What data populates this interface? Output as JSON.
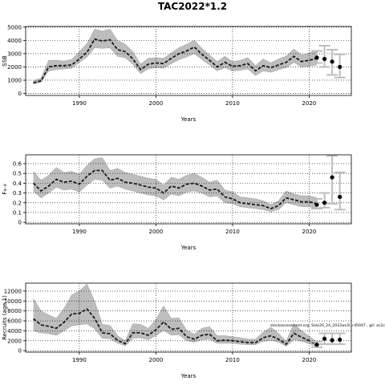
{
  "title": "TAC2022*1.2",
  "chart_data": [
    {
      "type": "line",
      "ylabel": "SSB",
      "xlabel": "Years",
      "xlim": [
        1983,
        2025.5
      ],
      "ylim": [
        -150,
        5050
      ],
      "xticks": [
        1990,
        2000,
        2010,
        2020
      ],
      "yticks": [
        0,
        1000,
        2000,
        3000,
        4000,
        5000
      ],
      "grid": "dotted at ticks",
      "x": [
        1984,
        1985,
        1986,
        1987,
        1988,
        1989,
        1990,
        1991,
        1992,
        1993,
        1994,
        1995,
        1996,
        1997,
        1998,
        1999,
        2000,
        2001,
        2002,
        2003,
        2004,
        2005,
        2006,
        2007,
        2008,
        2009,
        2010,
        2011,
        2012,
        2013,
        2014,
        2015,
        2016,
        2017,
        2018,
        2019,
        2020,
        2021
      ],
      "series": [
        {
          "role": "estimate",
          "values": [
            800,
            950,
            2000,
            2100,
            2100,
            2150,
            2600,
            3100,
            4100,
            3950,
            4050,
            3300,
            3150,
            2600,
            1800,
            2200,
            2300,
            2250,
            2650,
            3000,
            3200,
            3500,
            2950,
            2500,
            2000,
            2350,
            2050,
            2100,
            2250,
            1700,
            2100,
            1950,
            2150,
            2350,
            2800,
            2400,
            2500,
            2650
          ]
        },
        {
          "role": "lower",
          "values": [
            700,
            850,
            1700,
            1800,
            1850,
            1900,
            2350,
            2750,
            3450,
            3400,
            3450,
            2800,
            2700,
            2200,
            1500,
            1850,
            1950,
            1900,
            2250,
            2550,
            2750,
            3000,
            2550,
            2150,
            1700,
            1950,
            1700,
            1750,
            1850,
            1350,
            1700,
            1600,
            1800,
            1950,
            2350,
            2000,
            2050,
            2150
          ]
        },
        {
          "role": "upper",
          "values": [
            950,
            1150,
            2500,
            2500,
            2450,
            2550,
            3150,
            3750,
            4850,
            4700,
            4850,
            4000,
            3700,
            3150,
            2200,
            2650,
            2700,
            2650,
            3050,
            3450,
            3700,
            4000,
            3400,
            2900,
            2400,
            2800,
            2400,
            2500,
            2700,
            2100,
            2600,
            2300,
            2600,
            2800,
            3350,
            2900,
            3050,
            3250
          ]
        },
        {
          "role": "projection",
          "x": [
            2021,
            2022,
            2023,
            2024
          ],
          "values": [
            2700,
            2600,
            2400,
            2000
          ],
          "lower": [
            2300,
            2000,
            1400,
            1200
          ],
          "upper": [
            3200,
            3600,
            3300,
            2950
          ]
        }
      ]
    },
    {
      "type": "line",
      "ylabel": "F₄₋₈",
      "xlabel": "Years",
      "xlim": [
        1983,
        2025.5
      ],
      "ylim": [
        -0.015,
        0.69
      ],
      "xticks": [
        1990,
        2000,
        2010,
        2020
      ],
      "yticks": [
        0.0,
        0.1,
        0.2,
        0.3,
        0.4,
        0.5,
        0.6
      ],
      "grid": "dotted at ticks",
      "x": [
        1984,
        1985,
        1986,
        1987,
        1988,
        1989,
        1990,
        1991,
        1992,
        1993,
        1994,
        1995,
        1996,
        1997,
        1998,
        1999,
        2000,
        2001,
        2002,
        2003,
        2004,
        2005,
        2006,
        2007,
        2008,
        2009,
        2010,
        2011,
        2012,
        2013,
        2014,
        2015,
        2016,
        2017,
        2018,
        2019,
        2020,
        2021
      ],
      "series": [
        {
          "role": "estimate",
          "values": [
            0.4,
            0.32,
            0.37,
            0.44,
            0.41,
            0.42,
            0.39,
            0.47,
            0.53,
            0.53,
            0.43,
            0.45,
            0.41,
            0.4,
            0.38,
            0.36,
            0.35,
            0.3,
            0.37,
            0.35,
            0.39,
            0.4,
            0.37,
            0.33,
            0.34,
            0.26,
            0.24,
            0.2,
            0.19,
            0.18,
            0.17,
            0.14,
            0.17,
            0.25,
            0.23,
            0.21,
            0.21,
            0.19
          ]
        },
        {
          "role": "lower",
          "values": [
            0.32,
            0.25,
            0.3,
            0.36,
            0.33,
            0.34,
            0.31,
            0.38,
            0.44,
            0.43,
            0.35,
            0.37,
            0.34,
            0.32,
            0.3,
            0.28,
            0.27,
            0.23,
            0.29,
            0.27,
            0.31,
            0.32,
            0.3,
            0.26,
            0.27,
            0.2,
            0.19,
            0.16,
            0.15,
            0.14,
            0.13,
            0.11,
            0.13,
            0.2,
            0.18,
            0.16,
            0.16,
            0.14
          ]
        },
        {
          "role": "upper",
          "values": [
            0.52,
            0.43,
            0.48,
            0.56,
            0.51,
            0.52,
            0.49,
            0.58,
            0.65,
            0.66,
            0.53,
            0.55,
            0.51,
            0.49,
            0.47,
            0.45,
            0.44,
            0.38,
            0.46,
            0.44,
            0.48,
            0.5,
            0.46,
            0.41,
            0.43,
            0.33,
            0.31,
            0.26,
            0.25,
            0.24,
            0.22,
            0.18,
            0.22,
            0.32,
            0.29,
            0.27,
            0.27,
            0.25
          ]
        },
        {
          "role": "projection",
          "x": [
            2021,
            2022,
            2023,
            2024
          ],
          "values": [
            0.18,
            0.2,
            0.46,
            0.26
          ],
          "lower": [
            0.14,
            0.15,
            0.19,
            0.13
          ],
          "upper": [
            0.24,
            0.3,
            0.68,
            0.51
          ]
        }
      ]
    },
    {
      "type": "line",
      "ylabel": "Recruits (age 1)",
      "xlabel": "Years",
      "xlim": [
        1983,
        2025.5
      ],
      "ylim": [
        -300,
        13600
      ],
      "xticks": [
        1990,
        2000,
        2010,
        2020
      ],
      "yticks": [
        0,
        2000,
        4000,
        6000,
        8000,
        10000,
        12000
      ],
      "grid": "dotted at ticks",
      "annotation": "stockassessment.org, Sole20_24_2022ws2l, r45947 , git: ec2c",
      "x": [
        1984,
        1985,
        1986,
        1987,
        1988,
        1989,
        1990,
        1991,
        1992,
        1993,
        1994,
        1995,
        1996,
        1997,
        1998,
        1999,
        2000,
        2001,
        2002,
        2003,
        2004,
        2005,
        2006,
        2007,
        2008,
        2009,
        2010,
        2011,
        2012,
        2013,
        2014,
        2015,
        2016,
        2017,
        2018,
        2019,
        2020,
        2021
      ],
      "series": [
        {
          "role": "estimate",
          "values": [
            6400,
            5200,
            4900,
            4500,
            5700,
            7400,
            7500,
            8400,
            6500,
            3600,
            3400,
            2100,
            1400,
            3600,
            3600,
            3100,
            4200,
            5800,
            4300,
            4500,
            2800,
            2300,
            3100,
            3300,
            2000,
            2100,
            2000,
            1800,
            1600,
            1600,
            2600,
            3000,
            2300,
            1300,
            3500,
            2700,
            2000,
            1200
          ]
        },
        {
          "role": "lower",
          "values": [
            4000,
            3600,
            3400,
            3100,
            4000,
            5000,
            5200,
            5400,
            4400,
            2500,
            2400,
            1500,
            1000,
            2500,
            2600,
            2200,
            3000,
            4100,
            3100,
            3200,
            2000,
            1700,
            2200,
            2300,
            1500,
            1500,
            1500,
            1300,
            1200,
            1200,
            1900,
            2100,
            1700,
            900,
            2200,
            1900,
            1400,
            800
          ]
        },
        {
          "role": "upper",
          "values": [
            10500,
            8000,
            7200,
            6500,
            8500,
            11200,
            12000,
            13400,
            10000,
            5300,
            5100,
            3000,
            2000,
            5400,
            5300,
            4500,
            6200,
            9000,
            6500,
            6600,
            4100,
            3300,
            4500,
            4800,
            3000,
            3000,
            2800,
            2600,
            2300,
            2300,
            3700,
            4700,
            3500,
            1900,
            5400,
            4000,
            2900,
            1800
          ]
        },
        {
          "role": "projection",
          "x": [
            2021,
            2022,
            2023,
            2024
          ],
          "values": [
            1200,
            2400,
            2100,
            2200
          ],
          "lower": [
            700,
            1300,
            1300,
            1300
          ],
          "upper": [
            1800,
            3500,
            3500,
            3500
          ]
        }
      ]
    }
  ]
}
